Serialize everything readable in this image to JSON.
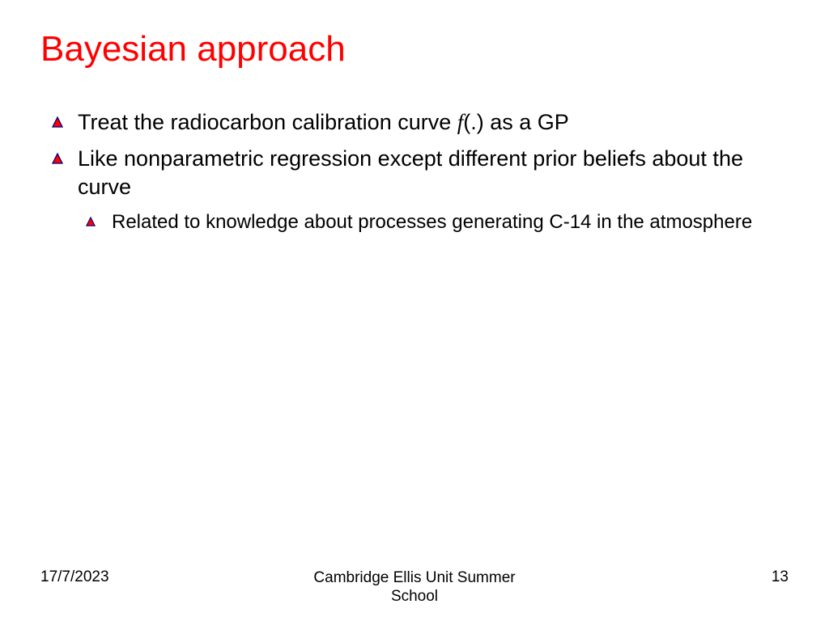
{
  "title": "Bayesian approach",
  "title_color": "#ff0000",
  "background_color": "#ffffff",
  "text_color": "#000000",
  "bullet_triangle": {
    "fill": "#ff0000",
    "stroke": "#000080"
  },
  "bullets": [
    {
      "runs": [
        {
          "text": "Treat the radiocarbon calibration curve "
        },
        {
          "text": "f",
          "italic_serif": true
        },
        {
          "text": "(.) as a GP"
        }
      ]
    },
    {
      "runs": [
        {
          "text": "Like nonparametric regression except different prior beliefs about the curve"
        }
      ],
      "sub": [
        {
          "runs": [
            {
              "text": "Related to knowledge about processes generating C-14 in the atmosphere"
            }
          ]
        }
      ]
    }
  ],
  "footer": {
    "date": "17/7/2023",
    "center_line1": "Cambridge Ellis Unit Summer",
    "center_line2": "School",
    "page": "13"
  },
  "fontsize": {
    "title": 44,
    "bullet": 27,
    "sub": 24,
    "footer": 19
  }
}
